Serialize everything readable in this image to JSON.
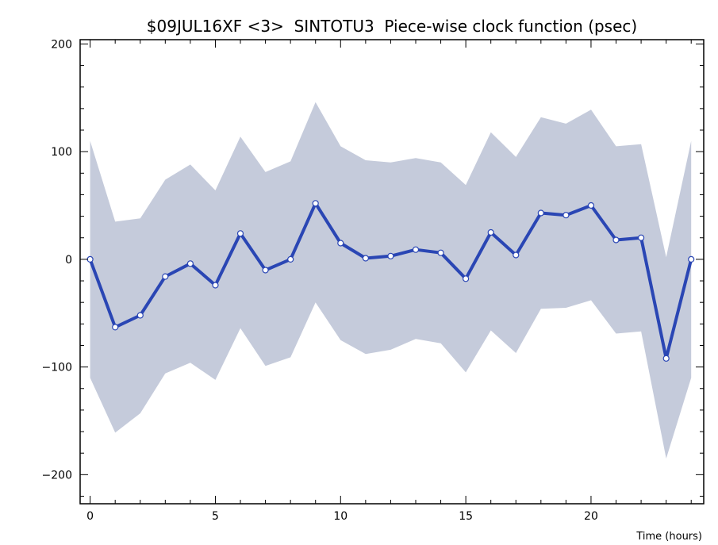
{
  "chart_data": {
    "type": "line",
    "title": "$09JUL16XF <3>  SINTOTU3  Piece-wise clock function (psec)",
    "xlabel": "Time (hours)",
    "ylabel": "",
    "xlim": [
      -0.4,
      24.5
    ],
    "ylim": [
      -227,
      204
    ],
    "x_ticks": [
      0,
      5,
      10,
      15,
      20
    ],
    "y_ticks": [
      -200,
      -100,
      0,
      100,
      200
    ],
    "x_tick_labels": [
      "0",
      "5",
      "10",
      "15",
      "20"
    ],
    "y_tick_labels": [
      "−200",
      "−100",
      "0",
      "100",
      "200"
    ],
    "grid": false,
    "legend": "none",
    "colors": {
      "line": "#2a46b4",
      "band": "#c5cbdb",
      "marker_fill": "#ffffff"
    },
    "x": [
      0,
      1,
      2,
      3,
      4,
      5,
      6,
      7,
      8,
      9,
      10,
      11,
      12,
      13,
      14,
      15,
      16,
      17,
      18,
      19,
      20,
      21,
      22,
      23,
      24
    ],
    "series": [
      {
        "values": [
          0,
          -63,
          -52,
          -16,
          -4,
          -24,
          24,
          -10,
          0,
          52,
          15,
          1,
          3,
          9,
          6,
          -18,
          25,
          4,
          43,
          41,
          50,
          18,
          20,
          -92,
          0
        ]
      }
    ],
    "band": {
      "upper": [
        110,
        35,
        38,
        74,
        88,
        64,
        114,
        81,
        91,
        146,
        105,
        92,
        90,
        94,
        90,
        69,
        118,
        95,
        132,
        126,
        139,
        105,
        107,
        2,
        110
      ],
      "lower": [
        -110,
        -161,
        -143,
        -106,
        -96,
        -112,
        -64,
        -99,
        -91,
        -40,
        -75,
        -88,
        -84,
        -74,
        -78,
        -105,
        -66,
        -87,
        -46,
        -45,
        -38,
        -69,
        -67,
        -185,
        -110
      ]
    }
  }
}
